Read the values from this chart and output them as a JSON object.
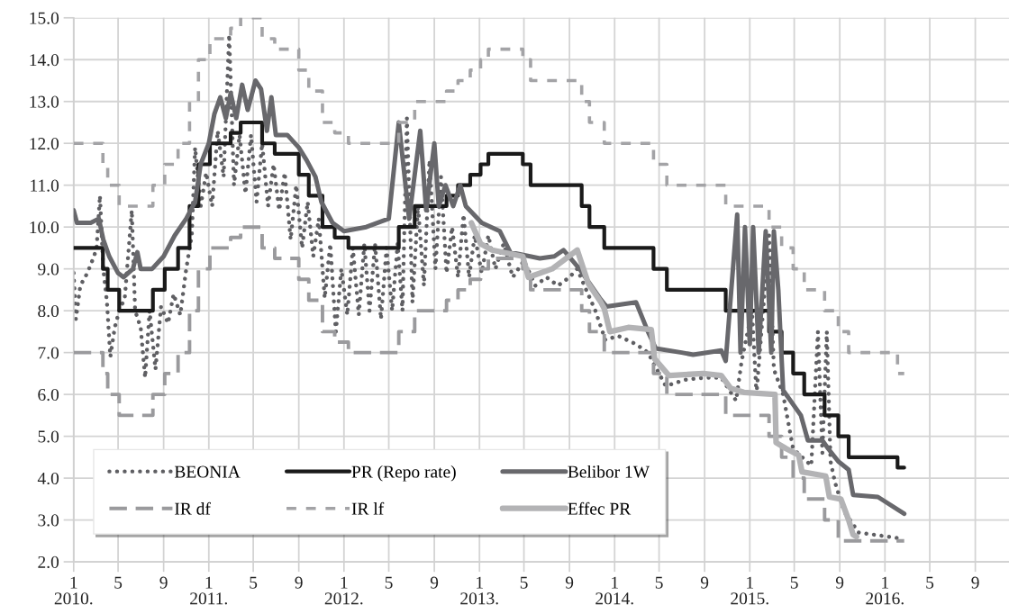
{
  "chart_data": {
    "type": "line",
    "x": [
      "2010-01-01",
      "2010-03-21",
      "2010-04-03",
      "2010-05-04",
      "2010-08-03",
      "2010-09-04",
      "2010-10-10",
      "2010-11-10",
      "2010-12-04",
      "2011-01-04",
      "2011-03-01",
      "2011-03-28",
      "2011-05-25",
      "2011-06-28",
      "2011-09-01",
      "2011-09-28",
      "2011-11-04",
      "2011-12-07",
      "2012-01-13",
      "2012-05-28",
      "2012-07-10",
      "2012-10-04",
      "2012-11-04",
      "2012-12-07",
      "2013-01-04",
      "2013-01-25",
      "2013-04-28",
      "2013-05-19",
      "2013-10-04",
      "2013-10-25",
      "2013-12-04",
      "2014-04-16",
      "2014-05-22",
      "2014-10-28",
      "2015-02-22",
      "2015-03-28",
      "2015-04-28",
      "2015-05-28",
      "2015-07-22",
      "2015-08-28",
      "2015-09-25",
      "2016-02-04",
      "2016-02-22"
    ],
    "series": [
      {
        "name": "BEONIA",
        "line_style": "dotted",
        "color": "#5f5f63",
        "x": [
          "2010-01-01",
          "2010-01-07",
          "2010-01-19",
          "2010-02-07",
          "2010-02-25",
          "2010-03-04",
          "2010-03-13",
          "2010-03-22",
          "2010-04-01",
          "2010-04-10",
          "2010-04-22",
          "2010-05-04",
          "2010-05-19",
          "2010-06-07",
          "2010-06-16",
          "2010-07-01",
          "2010-07-13",
          "2010-07-25",
          "2010-08-10",
          "2010-08-25",
          "2010-09-13",
          "2010-09-28",
          "2010-10-16",
          "2010-11-01",
          "2010-11-16",
          "2010-11-25",
          "2010-12-10",
          "2010-12-25",
          "2011-01-10",
          "2011-01-25",
          "2011-02-10",
          "2011-02-25",
          "2011-03-10",
          "2011-03-25",
          "2011-04-10",
          "2011-04-25",
          "2011-05-10",
          "2011-05-25",
          "2011-06-10",
          "2011-06-25",
          "2011-07-10",
          "2011-07-25",
          "2011-08-10",
          "2011-08-25",
          "2011-09-10",
          "2011-09-25",
          "2011-10-10",
          "2011-10-25",
          "2011-11-10",
          "2011-11-25",
          "2011-12-10",
          "2011-12-25",
          "2012-01-10",
          "2012-01-25",
          "2012-02-10",
          "2012-02-25",
          "2012-03-10",
          "2012-03-25",
          "2012-04-10",
          "2012-04-25",
          "2012-05-10",
          "2012-05-25",
          "2012-06-07",
          "2012-06-19",
          "2012-07-04",
          "2012-07-19",
          "2012-08-04",
          "2012-08-19",
          "2012-09-04",
          "2012-09-19",
          "2012-10-04",
          "2012-10-19",
          "2012-11-04",
          "2012-11-19",
          "2012-12-04",
          "2012-12-19",
          "2013-01-07",
          "2013-01-25",
          "2013-02-13",
          "2013-03-07",
          "2013-04-01",
          "2013-05-01",
          "2013-06-01",
          "2013-07-01",
          "2013-08-01",
          "2013-09-01",
          "2013-09-22",
          "2013-10-16",
          "2013-11-10",
          "2013-12-07",
          "2014-01-10",
          "2014-02-28",
          "2014-04-01",
          "2014-05-19",
          "2014-07-10",
          "2014-09-01",
          "2014-10-16",
          "2014-11-25",
          "2014-12-10",
          "2015-01-07",
          "2015-01-19",
          "2015-02-22",
          "2015-03-07",
          "2015-04-01",
          "2015-04-28",
          "2015-06-16",
          "2015-07-04",
          "2015-07-16",
          "2015-07-28",
          "2015-08-07",
          "2015-08-19",
          "2015-09-13",
          "2015-10-22",
          "2015-12-01",
          "2016-01-10",
          "2016-02-16"
        ],
        "values": [
          8.9,
          7.8,
          8.6,
          8.9,
          9.3,
          9.5,
          10.75,
          9.0,
          8.2,
          6.9,
          7.6,
          8.0,
          8.3,
          10.4,
          8.0,
          7.6,
          6.4,
          8.0,
          6.6,
          8.1,
          7.7,
          8.4,
          7.9,
          9.0,
          9.8,
          11.9,
          10.5,
          11.3,
          10.5,
          12.3,
          11.2,
          14.6,
          11.0,
          12.2,
          10.8,
          12.2,
          10.6,
          12.0,
          10.5,
          11.5,
          10.4,
          11.3,
          9.7,
          11.0,
          9.5,
          10.6,
          9.3,
          10.2,
          8.3,
          9.6,
          7.5,
          9.0,
          7.9,
          9.5,
          7.9,
          9.6,
          8.0,
          9.6,
          7.8,
          9.5,
          8.0,
          9.6,
          8.0,
          12.6,
          8.2,
          10.5,
          8.6,
          11.6,
          9.0,
          11.2,
          8.9,
          10.0,
          8.8,
          10.3,
          8.8,
          9.8,
          8.9,
          9.8,
          9.0,
          9.6,
          8.8,
          9.2,
          8.6,
          8.8,
          8.6,
          8.8,
          9.0,
          8.5,
          8.0,
          7.3,
          7.4,
          7.2,
          7.0,
          6.2,
          6.35,
          6.4,
          6.4,
          5.85,
          6.8,
          8.0,
          6.0,
          9.8,
          6.6,
          6.0,
          4.7,
          4.3,
          7.5,
          4.6,
          7.5,
          4.4,
          3.9,
          3.2,
          2.7,
          2.65,
          2.6,
          2.55
        ]
      },
      {
        "name": "PR (Repo rate)",
        "type": "step",
        "line_style": "solid",
        "color": "#1a1a1a",
        "values": [
          9.5,
          9.0,
          8.5,
          8.0,
          8.5,
          9.0,
          9.5,
          10.5,
          11.5,
          12.0,
          12.25,
          12.5,
          12.0,
          11.75,
          11.25,
          10.75,
          10.0,
          9.75,
          9.5,
          10.0,
          10.5,
          10.75,
          11.0,
          11.25,
          11.5,
          11.75,
          11.5,
          11.0,
          10.5,
          10.0,
          9.5,
          9.0,
          8.5,
          8.0,
          7.5,
          7.0,
          6.5,
          6.0,
          5.5,
          5.0,
          4.5,
          4.25,
          4.25
        ]
      },
      {
        "name": "Belibor 1W",
        "line_style": "solid",
        "color": "#68686c",
        "x": [
          "2010-01-01",
          "2010-01-10",
          "2010-02-16",
          "2010-03-10",
          "2010-03-22",
          "2010-04-07",
          "2010-05-01",
          "2010-05-16",
          "2010-06-10",
          "2010-06-22",
          "2010-07-01",
          "2010-08-01",
          "2010-09-01",
          "2010-10-01",
          "2010-11-01",
          "2010-11-25",
          "2010-12-10",
          "2011-01-01",
          "2011-01-16",
          "2011-02-01",
          "2011-02-16",
          "2011-03-01",
          "2011-03-16",
          "2011-04-01",
          "2011-04-16",
          "2011-05-07",
          "2011-05-22",
          "2011-06-07",
          "2011-06-19",
          "2011-07-01",
          "2011-08-01",
          "2011-09-01",
          "2011-09-22",
          "2011-10-16",
          "2011-11-01",
          "2011-12-01",
          "2012-01-01",
          "2012-03-01",
          "2012-05-01",
          "2012-05-28",
          "2012-06-25",
          "2012-07-25",
          "2012-08-10",
          "2012-09-01",
          "2012-09-13",
          "2012-10-01",
          "2012-10-22",
          "2012-11-10",
          "2012-11-25",
          "2013-01-07",
          "2013-02-25",
          "2013-03-25",
          "2013-06-13",
          "2013-07-22",
          "2013-08-16",
          "2013-09-28",
          "2013-11-22",
          "2013-12-10",
          "2014-02-28",
          "2014-04-01",
          "2014-04-22",
          "2014-07-01",
          "2014-08-01",
          "2014-10-16",
          "2014-10-28",
          "2014-11-28",
          "2014-12-07",
          "2014-12-19",
          "2015-01-01",
          "2015-01-10",
          "2015-01-25",
          "2015-02-13",
          "2015-02-28",
          "2015-03-07",
          "2015-03-19",
          "2015-04-01",
          "2015-05-19",
          "2015-06-07",
          "2015-07-16",
          "2015-08-01",
          "2015-08-28",
          "2015-09-25",
          "2015-10-07",
          "2015-12-13",
          "2016-02-22"
        ],
        "values": [
          10.4,
          10.1,
          10.1,
          10.2,
          9.7,
          9.3,
          8.9,
          8.8,
          9.0,
          9.4,
          9.0,
          9.0,
          9.3,
          9.8,
          10.2,
          10.6,
          11.5,
          12.0,
          12.7,
          13.1,
          12.6,
          13.2,
          12.6,
          13.4,
          12.8,
          13.5,
          13.3,
          12.3,
          13.1,
          12.2,
          12.2,
          11.9,
          11.6,
          11.2,
          10.6,
          10.1,
          9.9,
          10.0,
          10.2,
          12.5,
          10.2,
          12.3,
          10.4,
          12.0,
          10.5,
          11.0,
          10.5,
          11.0,
          10.5,
          10.1,
          9.9,
          9.4,
          9.25,
          9.3,
          9.45,
          9.0,
          8.3,
          8.1,
          8.2,
          7.5,
          7.1,
          7.0,
          6.95,
          7.05,
          6.8,
          10.3,
          7.0,
          10.0,
          7.2,
          10.0,
          7.0,
          9.9,
          7.0,
          9.9,
          8.5,
          6.1,
          5.5,
          4.9,
          4.9,
          4.7,
          4.4,
          4.2,
          3.6,
          3.55,
          3.15
        ]
      },
      {
        "name": "IR df",
        "type": "step",
        "line_style": "dashed",
        "color": "#9a9a9d",
        "values": [
          7.0,
          6.5,
          6.0,
          5.5,
          6.0,
          6.5,
          7.0,
          8.0,
          9.0,
          9.5,
          9.75,
          10.0,
          9.5,
          9.25,
          8.75,
          8.25,
          7.5,
          7.25,
          7.0,
          7.5,
          8.0,
          8.25,
          8.5,
          8.75,
          9.0,
          9.25,
          9.0,
          8.5,
          8.0,
          7.5,
          7.0,
          6.5,
          6.0,
          5.5,
          5.0,
          4.5,
          4.0,
          3.5,
          3.0,
          2.5,
          2.5,
          2.5,
          2.5
        ]
      },
      {
        "name": "IR lf",
        "type": "step",
        "line_style": "dashed",
        "color": "#a3a3a6",
        "values": [
          12.0,
          11.5,
          11.0,
          10.5,
          11.0,
          11.5,
          12.0,
          13.0,
          14.0,
          14.5,
          14.75,
          15.0,
          14.5,
          14.25,
          13.75,
          13.25,
          12.5,
          12.25,
          12.0,
          12.5,
          13.0,
          13.25,
          13.5,
          13.75,
          14.0,
          14.25,
          14.0,
          13.5,
          13.0,
          12.5,
          12.0,
          11.5,
          11.0,
          10.5,
          10.0,
          9.5,
          9.0,
          8.5,
          8.0,
          7.5,
          7.0,
          6.5,
          6.5
        ]
      },
      {
        "name": "Effec PR",
        "line_style": "solid",
        "color": "#b3b3b5",
        "x": [
          "2012-12-10",
          "2013-01-04",
          "2013-02-04",
          "2013-04-28",
          "2013-05-13",
          "2013-07-16",
          "2013-09-22",
          "2013-10-22",
          "2013-11-25",
          "2013-12-04",
          "2013-12-19",
          "2014-02-07",
          "2014-04-10",
          "2014-04-19",
          "2014-05-28",
          "2014-08-28",
          "2014-10-16",
          "2014-11-10",
          "2014-12-16",
          "2015-03-10",
          "2015-03-13",
          "2015-04-10",
          "2015-05-13",
          "2015-05-22",
          "2015-07-25",
          "2015-08-04",
          "2015-09-04",
          "2015-09-25",
          "2015-10-07",
          "2015-10-16"
        ],
        "values": [
          10.1,
          9.6,
          9.45,
          9.3,
          8.8,
          9.0,
          9.45,
          8.65,
          8.2,
          8.05,
          7.5,
          7.6,
          7.55,
          6.85,
          6.45,
          6.5,
          6.45,
          6.15,
          6.05,
          6.0,
          4.85,
          4.7,
          4.55,
          4.15,
          4.05,
          3.55,
          3.5,
          3.0,
          2.65,
          2.6
        ]
      }
    ],
    "xlim": [
      "2010-01-01",
      "2016-12-01"
    ],
    "xticks": [
      {
        "value": "2010-01-01",
        "label": "1\n2010."
      },
      {
        "value": "2010-05-01",
        "label": "5"
      },
      {
        "value": "2010-09-01",
        "label": "9"
      },
      {
        "value": "2011-01-01",
        "label": "1\n2011."
      },
      {
        "value": "2011-05-01",
        "label": "5"
      },
      {
        "value": "2011-09-01",
        "label": "9"
      },
      {
        "value": "2012-01-01",
        "label": "1\n2012."
      },
      {
        "value": "2012-05-01",
        "label": "5"
      },
      {
        "value": "2012-09-01",
        "label": "9"
      },
      {
        "value": "2013-01-01",
        "label": "1\n2013."
      },
      {
        "value": "2013-05-01",
        "label": "5"
      },
      {
        "value": "2013-09-01",
        "label": "9"
      },
      {
        "value": "2014-01-01",
        "label": "1\n2014."
      },
      {
        "value": "2014-05-01",
        "label": "5"
      },
      {
        "value": "2014-09-01",
        "label": "9"
      },
      {
        "value": "2015-01-01",
        "label": "1\n2015."
      },
      {
        "value": "2015-05-01",
        "label": "5"
      },
      {
        "value": "2015-09-01",
        "label": "9"
      },
      {
        "value": "2016-01-01",
        "label": "1\n2016."
      },
      {
        "value": "2016-05-01",
        "label": "5"
      },
      {
        "value": "2016-09-01",
        "label": "9"
      }
    ],
    "ylim": [
      2.0,
      15.0
    ],
    "yticks": [
      {
        "value": 2,
        "label": "2.0"
      },
      {
        "value": 3,
        "label": "3.0"
      },
      {
        "value": 4,
        "label": "4.0"
      },
      {
        "value": 5,
        "label": "5.0"
      },
      {
        "value": 6,
        "label": "6.0"
      },
      {
        "value": 7,
        "label": "7.0"
      },
      {
        "value": 8,
        "label": "8.0"
      },
      {
        "value": 9,
        "label": "9.0"
      },
      {
        "value": 10,
        "label": "10.0"
      },
      {
        "value": 11,
        "label": "11.0"
      },
      {
        "value": 12,
        "label": "12.0"
      },
      {
        "value": 13,
        "label": "13.0"
      },
      {
        "value": 14,
        "label": "14.0"
      },
      {
        "value": 15,
        "label": "15.0"
      }
    ],
    "grid": true,
    "legend": "bottom left"
  }
}
